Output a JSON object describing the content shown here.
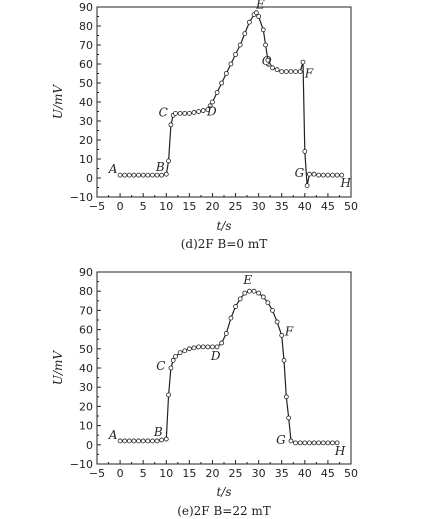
{
  "chart_data": [
    {
      "type": "line",
      "caption": "(d)2F B=0 mT",
      "xlabel": "t/s",
      "ylabel": "U/mV",
      "xlim": [
        -5,
        50
      ],
      "ylim": [
        -10,
        90
      ],
      "xticks": [
        -5,
        0,
        5,
        10,
        15,
        20,
        25,
        30,
        35,
        40,
        45,
        50
      ],
      "yticks": [
        -10,
        0,
        10,
        20,
        30,
        40,
        50,
        60,
        70,
        80,
        90
      ],
      "grid": false,
      "series": [
        {
          "points": [
            [
              0,
              1.5
            ],
            [
              1,
              1.5
            ],
            [
              2,
              1.5
            ],
            [
              3,
              1.5
            ],
            [
              4,
              1.5
            ],
            [
              5,
              1.5
            ],
            [
              6,
              1.5
            ],
            [
              7,
              1.5
            ],
            [
              8,
              1.5
            ],
            [
              9,
              1.5
            ],
            [
              10,
              2
            ],
            [
              10.5,
              9
            ],
            [
              11,
              28
            ],
            [
              11.5,
              33
            ],
            [
              12,
              34
            ],
            [
              13,
              34
            ],
            [
              14,
              34
            ],
            [
              15,
              34
            ],
            [
              16,
              34.5
            ],
            [
              17,
              35
            ],
            [
              18,
              35.5
            ],
            [
              19,
              36
            ],
            [
              19.5,
              38
            ],
            [
              20,
              40
            ],
            [
              21,
              45
            ],
            [
              22,
              50
            ],
            [
              23,
              55
            ],
            [
              24,
              60
            ],
            [
              25,
              65
            ],
            [
              26,
              70
            ],
            [
              27,
              76
            ],
            [
              28,
              82
            ],
            [
              29,
              86
            ],
            [
              29.5,
              87
            ],
            [
              30,
              85
            ],
            [
              31,
              78
            ],
            [
              31.5,
              70
            ],
            [
              32,
              62
            ],
            [
              33,
              58
            ],
            [
              34,
              57
            ],
            [
              35,
              56
            ],
            [
              36,
              56
            ],
            [
              37,
              56
            ],
            [
              38,
              56
            ],
            [
              39,
              56
            ],
            [
              39.6,
              61
            ],
            [
              40,
              14
            ],
            [
              40.5,
              -4
            ],
            [
              41,
              2
            ],
            [
              42,
              2
            ],
            [
              43,
              1.5
            ],
            [
              44,
              1.5
            ],
            [
              45,
              1.5
            ],
            [
              46,
              1.5
            ],
            [
              47,
              1.5
            ],
            [
              48,
              1.5
            ]
          ]
        }
      ],
      "annotations": [
        {
          "text": "A",
          "x": 0,
          "y": 1.5
        },
        {
          "text": "B",
          "x": 10,
          "y": 2
        },
        {
          "text": "C",
          "x": 11.5,
          "y": 34
        },
        {
          "text": "D",
          "x": 19,
          "y": 35.5
        },
        {
          "text": "E",
          "x": 29.5,
          "y": 87
        },
        {
          "text": "Q",
          "x": 33,
          "y": 58
        },
        {
          "text": "F",
          "x": 39.6,
          "y": 56
        },
        {
          "text": "G",
          "x": 41,
          "y": 2
        },
        {
          "text": "H",
          "x": 48,
          "y": 1.5
        }
      ]
    },
    {
      "type": "line",
      "caption": "(e)2F B=22 mT",
      "xlabel": "t/s",
      "ylabel": "U/mV",
      "xlim": [
        -5,
        50
      ],
      "ylim": [
        -10,
        90
      ],
      "xticks": [
        -5,
        0,
        5,
        10,
        15,
        20,
        25,
        30,
        35,
        40,
        45,
        50
      ],
      "yticks": [
        -10,
        0,
        10,
        20,
        30,
        40,
        50,
        60,
        70,
        80,
        90
      ],
      "grid": false,
      "series": [
        {
          "points": [
            [
              0,
              2
            ],
            [
              1,
              2
            ],
            [
              2,
              2
            ],
            [
              3,
              2
            ],
            [
              4,
              2
            ],
            [
              5,
              2
            ],
            [
              6,
              2
            ],
            [
              7,
              2
            ],
            [
              8,
              2
            ],
            [
              9,
              2.5
            ],
            [
              10,
              3
            ],
            [
              10.5,
              26
            ],
            [
              11,
              40
            ],
            [
              11.5,
              44
            ],
            [
              12,
              46
            ],
            [
              13,
              48
            ],
            [
              14,
              49
            ],
            [
              15,
              50
            ],
            [
              16,
              50.5
            ],
            [
              17,
              51
            ],
            [
              18,
              51
            ],
            [
              19,
              51
            ],
            [
              20,
              51
            ],
            [
              21,
              51
            ],
            [
              22,
              53
            ],
            [
              23,
              58
            ],
            [
              24,
              66
            ],
            [
              25,
              72
            ],
            [
              26,
              76
            ],
            [
              27,
              79
            ],
            [
              28,
              80
            ],
            [
              29,
              80
            ],
            [
              30,
              79
            ],
            [
              31,
              77
            ],
            [
              32,
              74
            ],
            [
              33,
              70
            ],
            [
              34,
              64
            ],
            [
              35,
              57
            ],
            [
              35.5,
              44
            ],
            [
              36,
              25
            ],
            [
              36.5,
              14
            ],
            [
              37,
              2
            ],
            [
              38,
              1
            ],
            [
              39,
              1
            ],
            [
              40,
              1
            ],
            [
              41,
              1
            ],
            [
              42,
              1
            ],
            [
              43,
              1
            ],
            [
              44,
              1
            ],
            [
              45,
              1
            ],
            [
              46,
              1
            ],
            [
              47,
              1
            ]
          ]
        }
      ],
      "annotations": [
        {
          "text": "A",
          "x": 0,
          "y": 2
        },
        {
          "text": "B",
          "x": 10,
          "y": 3
        },
        {
          "text": "C",
          "x": 11,
          "y": 40
        },
        {
          "text": "D",
          "x": 22,
          "y": 51
        },
        {
          "text": "E",
          "x": 28.5,
          "y": 80
        },
        {
          "text": "F",
          "x": 35.5,
          "y": 57
        },
        {
          "text": "G",
          "x": 37,
          "y": 2
        },
        {
          "text": "H",
          "x": 47,
          "y": 1
        }
      ]
    }
  ]
}
